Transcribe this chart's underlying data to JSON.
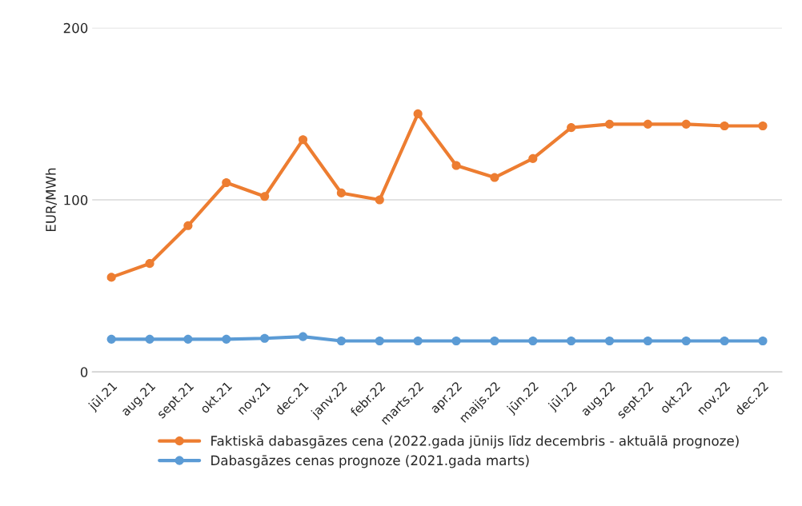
{
  "chart_data": {
    "type": "line",
    "ylabel": "EUR/MWh",
    "categories": [
      "jūl.21",
      "aug.21",
      "sept.21",
      "okt.21",
      "nov.21",
      "dec.21",
      "janv.22",
      "febr.22",
      "marts.22",
      "apr.22",
      "maijs.22",
      "jūn.22",
      "jūl.22",
      "aug.22",
      "sept.22",
      "okt.22",
      "nov.22",
      "dec.22"
    ],
    "series": [
      {
        "name": "Faktiskā dabasgāzes cena (2022.gada jūnijs līdz decembris - aktuālā prognoze)",
        "color": "#ed7d31",
        "values": [
          55,
          63,
          85,
          110,
          102,
          135,
          104,
          100,
          150,
          120,
          113,
          124,
          142,
          144,
          144,
          144,
          143,
          143
        ]
      },
      {
        "name": "Dabasgāzes cenas prognoze (2021.gada marts)",
        "color": "#5b9bd5",
        "values": [
          19,
          19,
          19,
          19,
          19.5,
          20.5,
          18,
          18,
          18,
          18,
          18,
          18,
          18,
          18,
          18,
          18,
          18,
          18
        ]
      }
    ],
    "ylim": [
      0,
      200
    ],
    "yticks": [
      0,
      100,
      200
    ],
    "grid": "y",
    "legend": "bottom",
    "marker": "circle",
    "line_style": "solid"
  }
}
